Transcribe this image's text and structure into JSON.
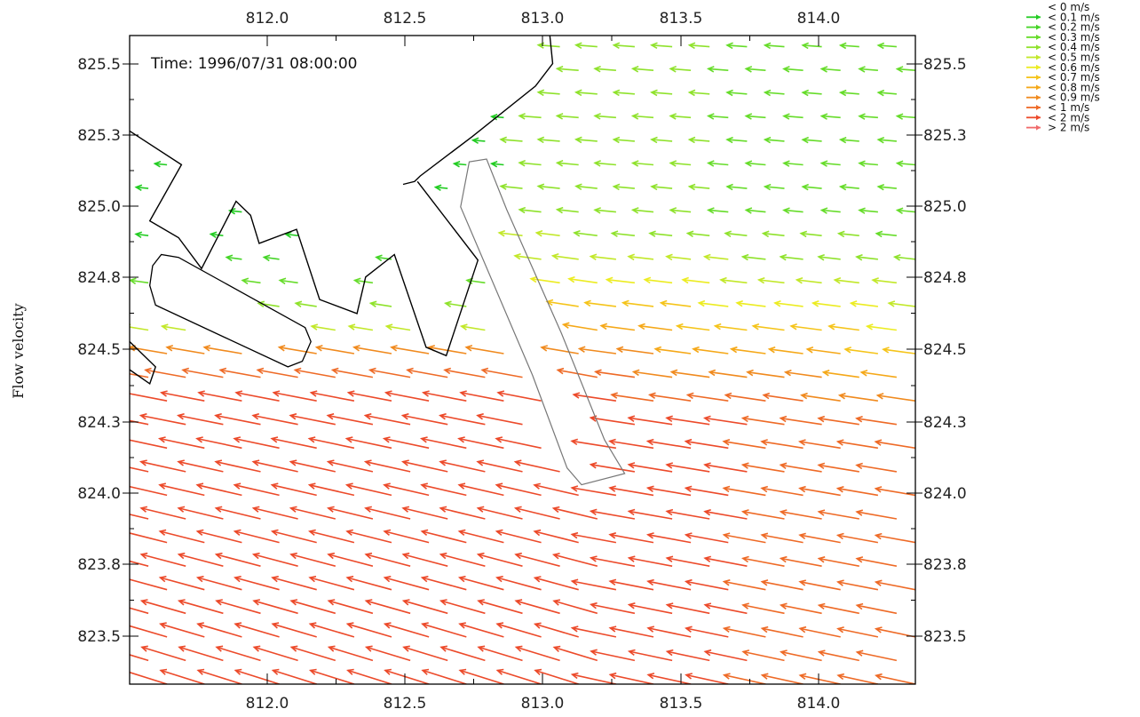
{
  "chart_data": {
    "type": "vector_field",
    "ylabel": "Flow velocity",
    "annotation": "Time: 1996/07/31 08:00:00",
    "xlim": [
      811.55,
      814.28
    ],
    "ylim": [
      823.35,
      825.66
    ],
    "x_ticks": [
      "812.0",
      "812.5",
      "813.0",
      "813.5",
      "814.0"
    ],
    "y_ticks": [
      "825.5",
      "825.3",
      "825.0",
      "824.8",
      "824.5",
      "824.3",
      "824.0",
      "823.8",
      "823.5"
    ],
    "legend": [
      {
        "label": "< 0 m/s",
        "color": "#ffffff"
      },
      {
        "label": "< 0.1 m/s",
        "color": "#22cc22"
      },
      {
        "label": "< 0.2 m/s",
        "color": "#44d426"
      },
      {
        "label": "< 0.3 m/s",
        "color": "#66dc2a"
      },
      {
        "label": "< 0.4 m/s",
        "color": "#8fe22c"
      },
      {
        "label": "< 0.5 m/s",
        "color": "#c2e82a"
      },
      {
        "label": "< 0.6 m/s",
        "color": "#ecec22"
      },
      {
        "label": "< 0.7 m/s",
        "color": "#f5c41a"
      },
      {
        "label": "< 0.8 m/s",
        "color": "#f5a818"
      },
      {
        "label": "< 0.9 m/s",
        "color": "#f08a1e"
      },
      {
        "label": "< 1 m/s",
        "color": "#ee6a26"
      },
      {
        "label": "< 2 m/s",
        "color": "#ec4a2a"
      },
      {
        "label": "> 2 m/s",
        "color": "#f06a6a"
      }
    ],
    "field": {
      "x_range": [
        811.55,
        814.28
      ],
      "y_range": [
        823.35,
        825.62
      ],
      "columns": 22,
      "rows": 28,
      "flow_direction": "west"
    },
    "coastline": [
      [
        [
          813.01,
          825.66
        ],
        [
          813.02,
          825.56
        ],
        [
          812.96,
          825.48
        ],
        [
          812.74,
          825.3
        ],
        [
          812.56,
          825.16
        ],
        [
          812.54,
          825.14
        ],
        [
          812.5,
          825.13
        ]
      ],
      [
        [
          812.55,
          825.14
        ],
        [
          812.76,
          824.86
        ],
        [
          812.65,
          824.52
        ],
        [
          812.58,
          824.55
        ],
        [
          812.47,
          824.88
        ],
        [
          812.37,
          824.8
        ],
        [
          812.34,
          824.67
        ],
        [
          812.21,
          824.72
        ],
        [
          812.13,
          824.97
        ],
        [
          812.0,
          824.92
        ],
        [
          811.97,
          825.02
        ],
        [
          811.92,
          825.07
        ],
        [
          811.8,
          824.83
        ],
        [
          811.72,
          824.94
        ],
        [
          811.62,
          825.0
        ],
        [
          811.73,
          825.2
        ],
        [
          811.55,
          825.32
        ]
      ],
      [
        [
          811.55,
          824.57
        ],
        [
          811.64,
          824.48
        ],
        [
          811.62,
          824.42
        ],
        [
          811.55,
          824.47
        ]
      ]
    ],
    "breakwater": [
      [
        811.63,
        824.84
      ],
      [
        811.66,
        824.88
      ],
      [
        811.72,
        824.87
      ],
      [
        812.16,
        824.62
      ],
      [
        812.18,
        824.57
      ],
      [
        812.15,
        824.5
      ],
      [
        812.1,
        824.48
      ],
      [
        811.64,
        824.7
      ],
      [
        811.62,
        824.77
      ],
      [
        811.63,
        824.84
      ]
    ],
    "structure": [
      [
        812.73,
        825.21
      ],
      [
        812.7,
        825.05
      ],
      [
        812.95,
        824.45
      ],
      [
        813.07,
        824.12
      ],
      [
        813.12,
        824.06
      ],
      [
        813.27,
        824.1
      ],
      [
        813.2,
        824.22
      ],
      [
        813.05,
        824.6
      ],
      [
        812.86,
        825.04
      ],
      [
        812.79,
        825.22
      ],
      [
        812.73,
        825.21
      ]
    ]
  }
}
